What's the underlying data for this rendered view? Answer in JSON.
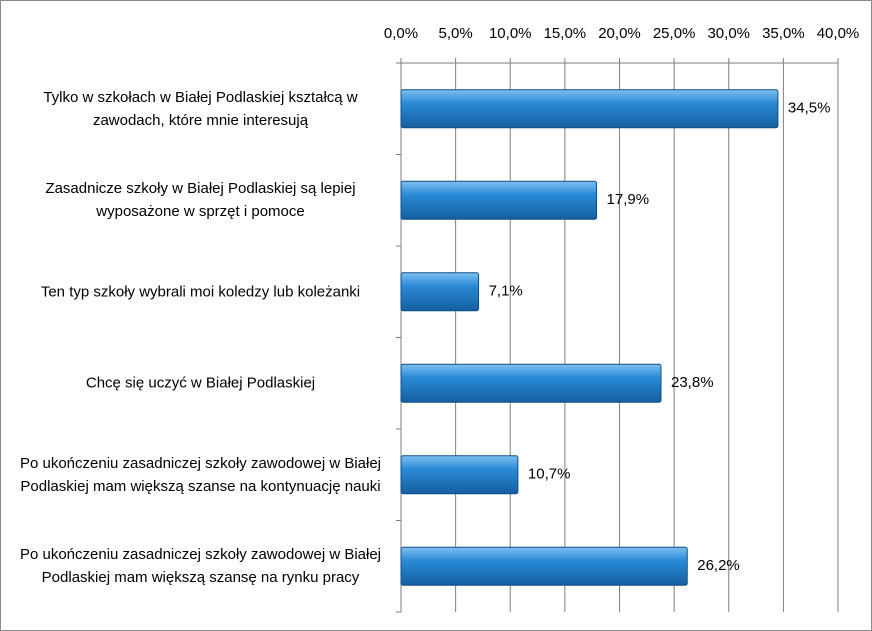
{
  "chart_data": {
    "type": "hbar",
    "categories": [
      "Tylko w szkołach w Białej Podlaskiej kształcą w zawodach, które mnie interesują",
      "Zasadnicze szkoły w Białej Podlaskiej są lepiej wyposażone w sprzęt i pomoce",
      "Ten typ szkoły wybrali moi koledzy lub koleżanki",
      "Chcę się uczyć w Białej Podlaskiej",
      "Po ukończeniu zasadniczej szkoły zawodowej w Białej Podlaskiej mam większą szanse na kontynuację nauki",
      "Po ukończeniu zasadniczej szkoły zawodowej w Białej Podlaskiej mam większą szansę na rynku pracy"
    ],
    "values": [
      34.5,
      17.9,
      7.1,
      23.8,
      10.7,
      26.2
    ],
    "value_labels": [
      "34,5%",
      "17,9%",
      "7,1%",
      "23,8%",
      "10,7%",
      "26,2%"
    ],
    "color": "#1f7cc8",
    "xlim": [
      0,
      40
    ],
    "xticks": [
      {
        "value": 0,
        "label": "0,0%"
      },
      {
        "value": 5,
        "label": "5,0%"
      },
      {
        "value": 10,
        "label": "10,0%"
      },
      {
        "value": 15,
        "label": "15,0%"
      },
      {
        "value": 20,
        "label": "20,0%"
      },
      {
        "value": 25,
        "label": "25,0%"
      },
      {
        "value": 30,
        "label": "30,0%"
      },
      {
        "value": 35,
        "label": "35,0%"
      },
      {
        "value": 40,
        "label": "40,0%"
      }
    ],
    "grid": true
  }
}
